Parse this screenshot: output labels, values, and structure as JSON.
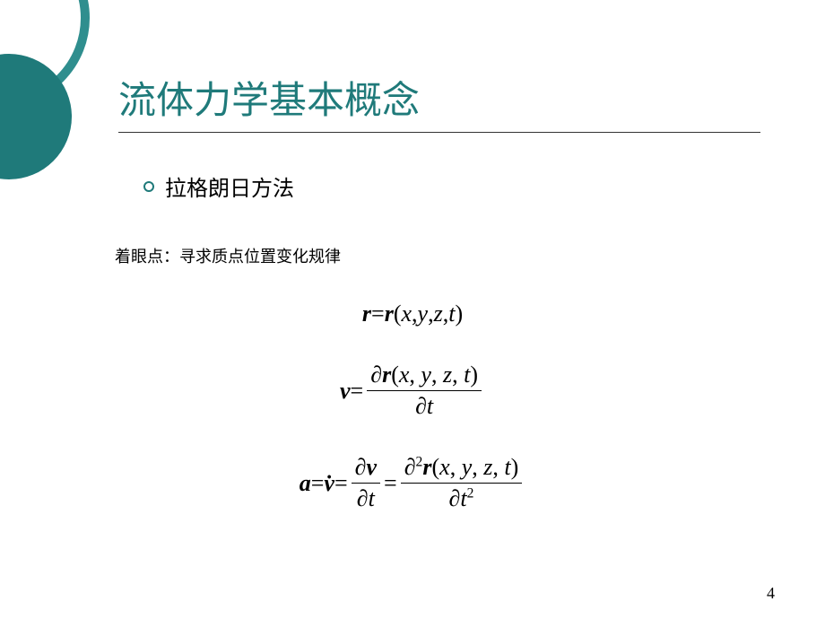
{
  "colors": {
    "accent": "#1f7a7a",
    "accent_light": "#2f8e8e",
    "text": "#000000",
    "background": "#ffffff",
    "rule": "#333333"
  },
  "typography": {
    "title_fontsize": 42,
    "bullet_fontsize": 24,
    "focus_fontsize": 18,
    "equation_fontsize": 26,
    "page_num_fontsize": 18,
    "title_family": "SimSun",
    "body_family": "Microsoft YaHei",
    "math_family": "Times New Roman"
  },
  "title": "流体力学基本概念",
  "bullet": {
    "icon": "hollow-circle",
    "label": "拉格朗日方法"
  },
  "focus": {
    "prefix": "着眼点：",
    "text": "寻求质点位置变化规律"
  },
  "equations": {
    "eq1": {
      "r": "r",
      "eq": " = ",
      "r2": "r",
      "args": "(",
      "x": "x",
      "c1": ", ",
      "y": "y",
      "c2": ", ",
      "z": "z",
      "c3": ", ",
      "t": "t",
      "close": ")"
    },
    "eq2": {
      "v": "v",
      "eq": " = ",
      "num_d": "∂",
      "num_r": "r",
      "num_args": "(",
      "num_x": "x",
      "num_c1": ", ",
      "num_y": "y",
      "num_c2": ", ",
      "num_z": "z",
      "num_c3": ", ",
      "num_t": "t",
      "num_close": ")",
      "den_d": "∂",
      "den_t": "t"
    },
    "eq3": {
      "a": "a",
      "eq1": " = ",
      "vdot": "v̇",
      "eq2": " = ",
      "f1_num_d": "∂",
      "f1_num_v": "v",
      "f1_den_d": "∂",
      "f1_den_t": "t",
      "eq3": " = ",
      "f2_num_d": "∂",
      "f2_num_sup": "2",
      "f2_num_r": "r",
      "f2_num_args": "(",
      "f2_num_x": "x",
      "f2_num_c1": ", ",
      "f2_num_y": "y",
      "f2_num_c2": ", ",
      "f2_num_z": "z",
      "f2_num_c3": ", ",
      "f2_num_t": "t",
      "f2_num_close": ")",
      "f2_den_d": "∂",
      "f2_den_t": "t",
      "f2_den_sup": "2"
    }
  },
  "page_number": "4"
}
